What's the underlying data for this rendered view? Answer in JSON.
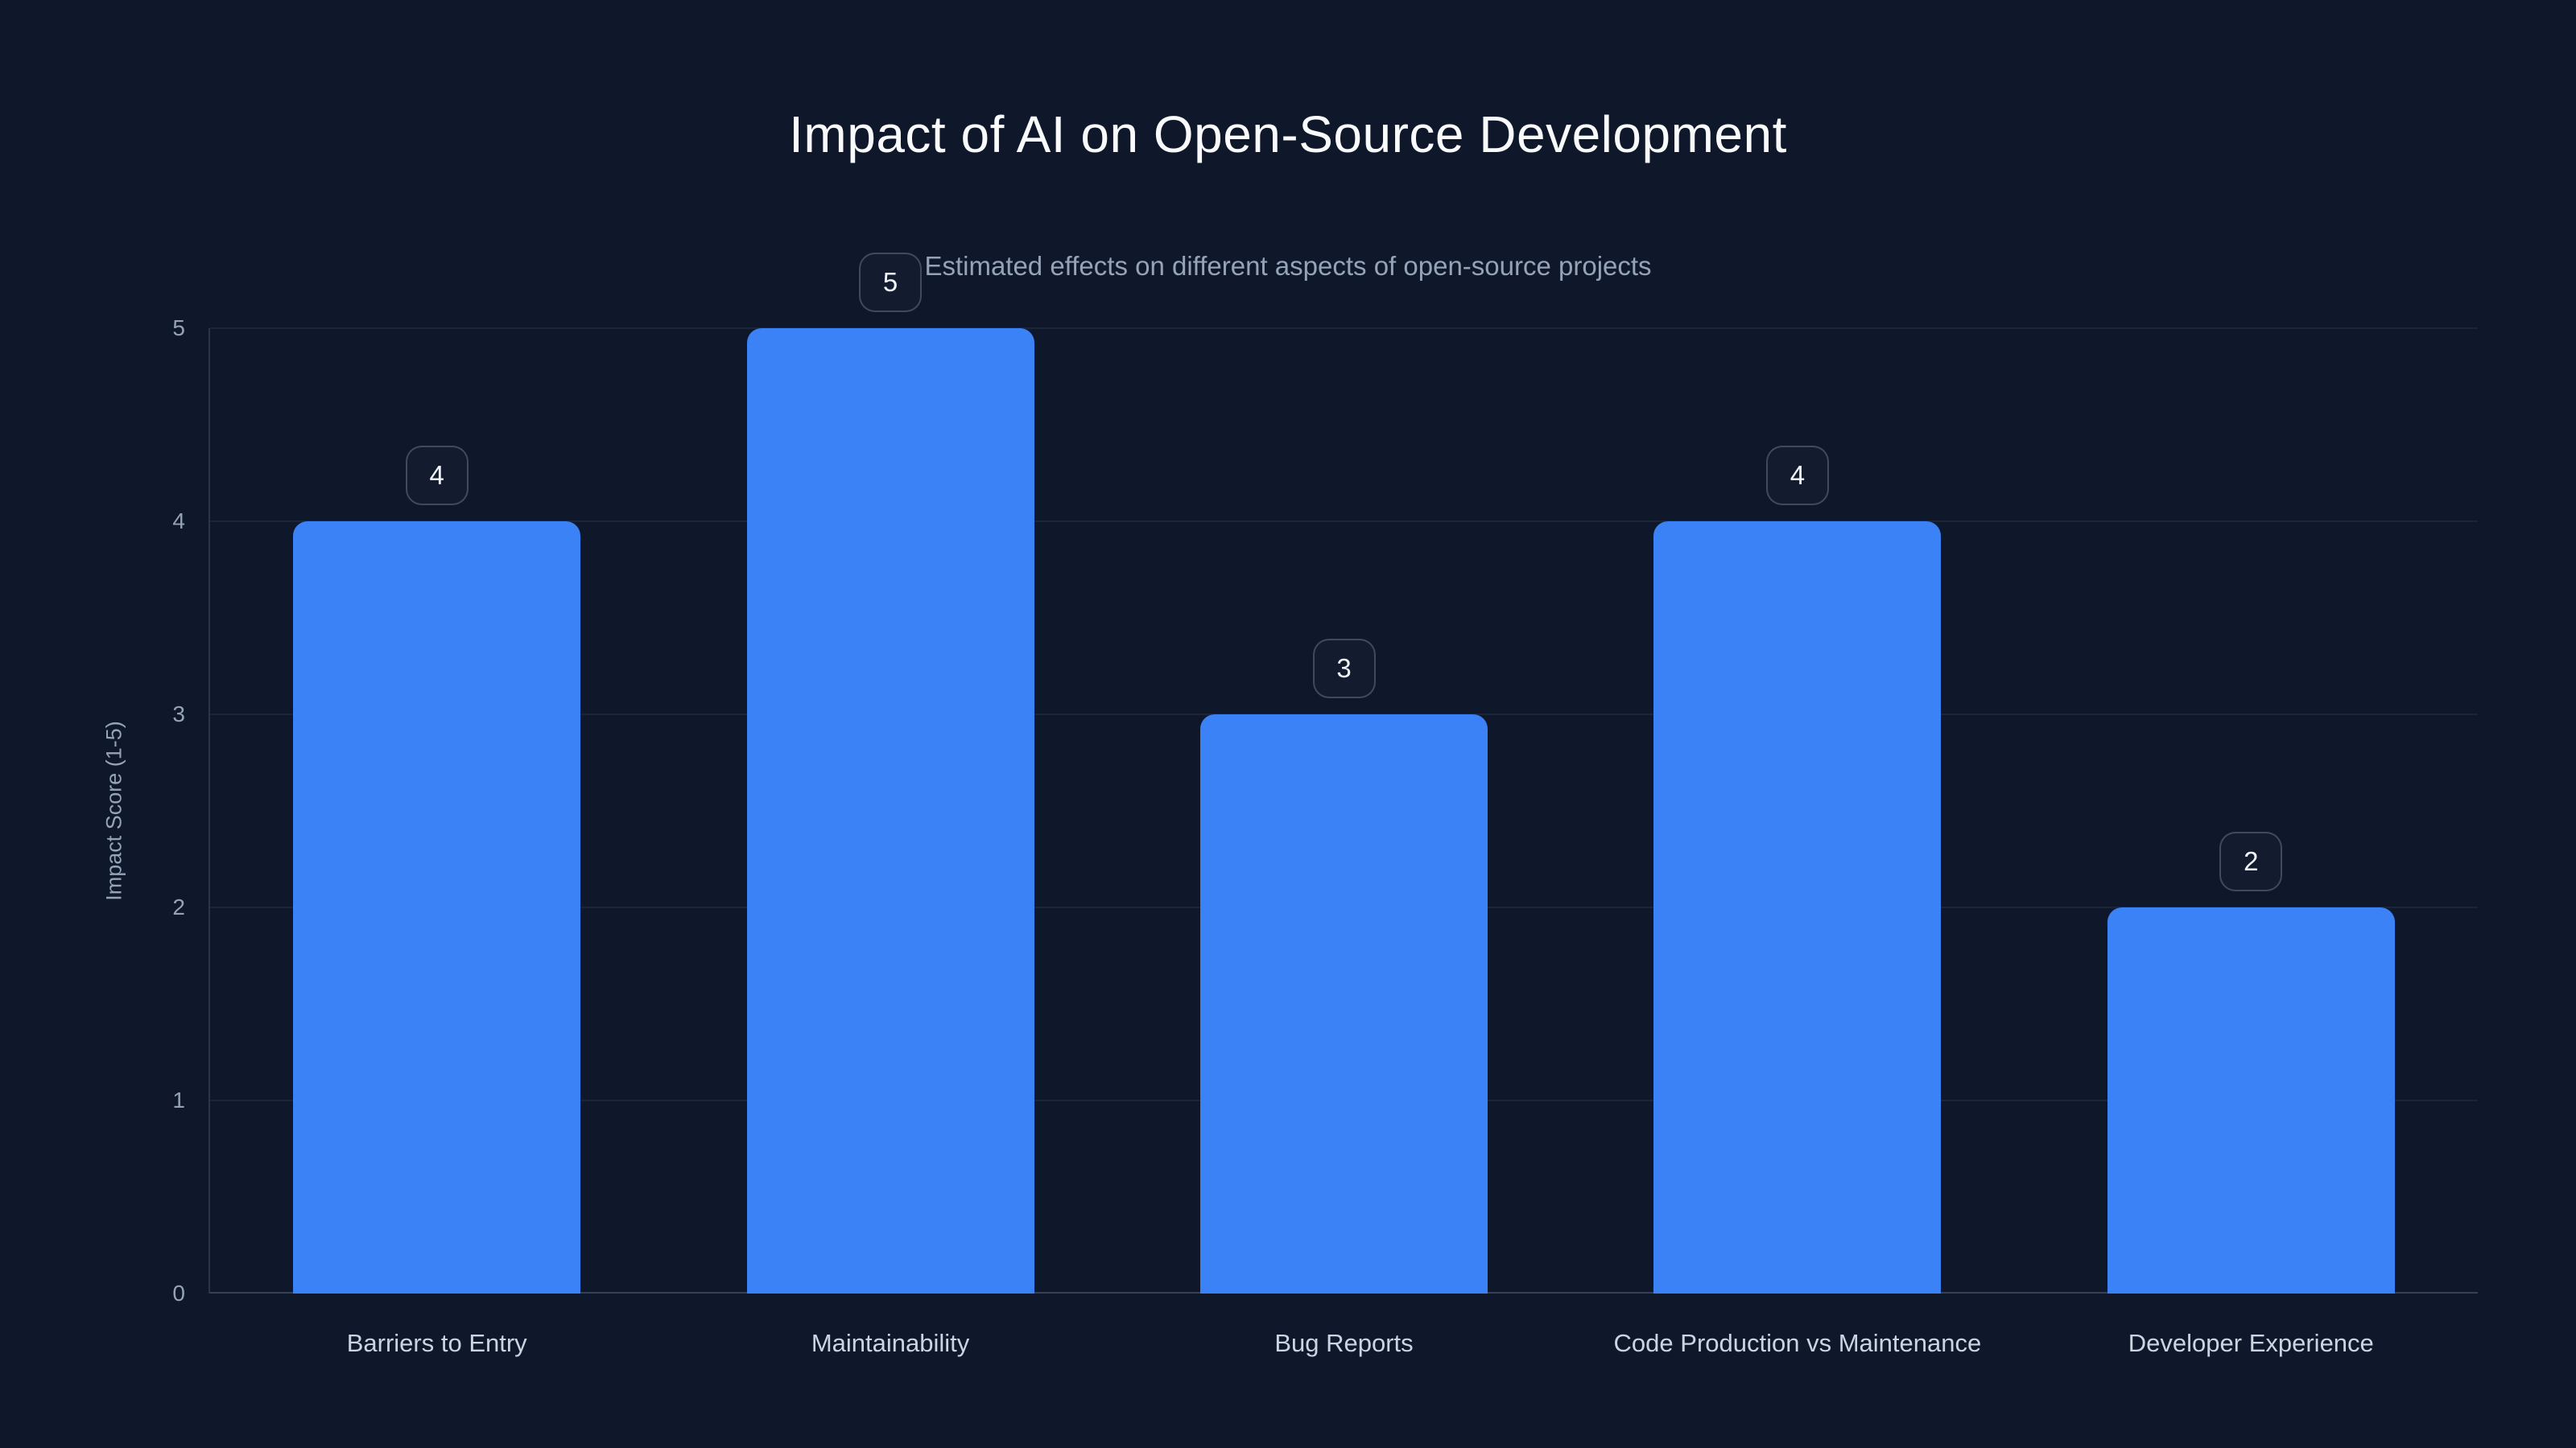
{
  "chart_data": {
    "type": "bar",
    "title": "Impact of AI on Open-Source Development",
    "subtitle": "Estimated effects on different aspects of open-source projects",
    "categories": [
      "Barriers to Entry",
      "Maintainability",
      "Bug Reports",
      "Code Production vs Maintenance",
      "Developer Experience"
    ],
    "values": [
      4,
      5,
      3,
      4,
      2
    ],
    "value_labels": [
      "4",
      "5",
      "3",
      "4",
      "2"
    ],
    "xlabel": "",
    "ylabel": "Impact Score (1-5)",
    "ylim": [
      0,
      5
    ],
    "yticks": [
      0,
      1,
      2,
      3,
      4,
      5
    ],
    "grid": true,
    "legend": "none",
    "colors": {
      "background": "#0f172a",
      "bar": "#3b82f6",
      "title_text": "#f8fafc",
      "subtitle_text": "#94a3b8",
      "axis_text": "#94a3b8",
      "category_text": "#cbd5e1",
      "gridline": "rgba(148,163,184,0.10)",
      "axis_line": "rgba(148,163,184,0.30)",
      "badge_border": "rgba(148,163,184,0.35)",
      "badge_text": "#f1f5f9"
    }
  }
}
